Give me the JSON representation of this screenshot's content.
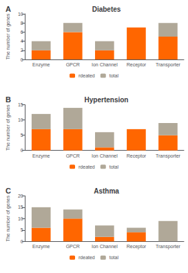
{
  "chart_data": [
    {
      "type": "bar",
      "title": "Diabetes",
      "annotations": [
        "A"
      ],
      "categories": [
        "Enzyme",
        "GPCR",
        "Ion Channel",
        "Receptor",
        "Transporter"
      ],
      "ylabel": "The number of genes",
      "series": [
        {
          "name": "rdeated",
          "color": "#FF6600",
          "values": [
            2,
            6,
            2,
            7,
            5
          ]
        },
        {
          "name": "total",
          "color": "#B0A898",
          "values": [
            2,
            2,
            2,
            0,
            3
          ]
        }
      ],
      "ylim": [
        0,
        10
      ],
      "yticks": [
        0,
        2,
        4,
        6,
        8,
        10
      ],
      "stacked": true,
      "grid": false,
      "legend": "bottom"
    },
    {
      "type": "bar",
      "title": "Hypertension",
      "annotations": [
        "B"
      ],
      "categories": [
        "Enzyme",
        "GPCR",
        "Ion Channel",
        "Receptor",
        "Transporter"
      ],
      "ylabel": "The number of genes",
      "series": [
        {
          "name": "rdeated",
          "color": "#FF6600",
          "values": [
            7,
            7,
            1,
            7,
            5
          ]
        },
        {
          "name": "total",
          "color": "#B0A898",
          "values": [
            5,
            7,
            5,
            0,
            4
          ]
        }
      ],
      "ylim": [
        0,
        15
      ],
      "yticks": [
        0,
        5,
        10,
        15
      ],
      "stacked": true,
      "grid": false,
      "legend": "bottom"
    },
    {
      "type": "bar",
      "title": "Asthma",
      "annotations": [
        "C"
      ],
      "categories": [
        "Enzyme",
        "GPCR",
        "Ion Channel",
        "Receptor",
        "Transporter"
      ],
      "ylabel": "The number of genes",
      "series": [
        {
          "name": "rdeated",
          "color": "#FF6600",
          "values": [
            6,
            10,
            2,
            4,
            0
          ]
        },
        {
          "name": "total",
          "color": "#B0A898",
          "values": [
            9,
            4,
            5,
            2,
            9
          ]
        }
      ],
      "ylim": [
        0,
        20
      ],
      "yticks": [
        0,
        5,
        10,
        15,
        20
      ],
      "stacked": true,
      "grid": false,
      "legend": "bottom"
    }
  ]
}
